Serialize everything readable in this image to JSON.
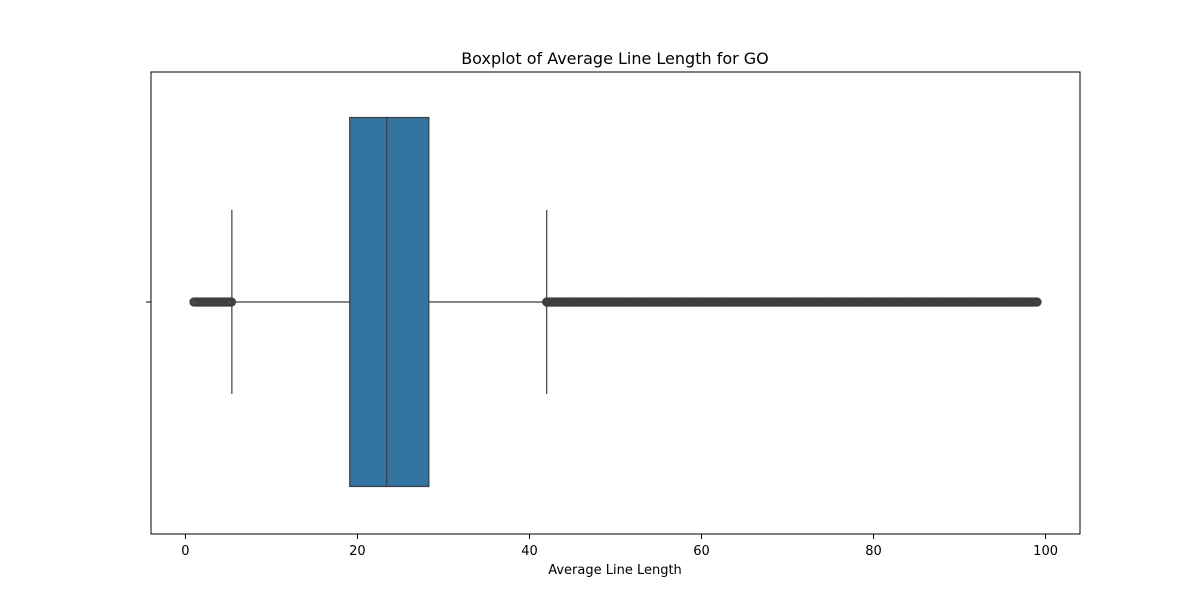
{
  "chart_data": {
    "type": "boxplot",
    "title": "Boxplot of Average Line Length for GO",
    "xlabel": "Average Line Length",
    "ylabel": "",
    "xlim": [
      -4,
      104
    ],
    "x_ticks": [
      0,
      20,
      40,
      60,
      80,
      100
    ],
    "x_tick_labels": [
      "0",
      "20",
      "40",
      "60",
      "80",
      "100"
    ],
    "grid": false,
    "legend": "none",
    "box": {
      "whisker_low": 5.4,
      "q1": 19.1,
      "median": 23.4,
      "q3": 28.3,
      "whisker_high": 42.0
    },
    "outliers_low_range": [
      1.0,
      5.4
    ],
    "outliers_high_range": [
      42.0,
      99.0
    ],
    "colors": {
      "box_fill": "#3274a1",
      "line": "#3f3f3f",
      "outlier": "#3f3f3f",
      "axes": "#000000"
    }
  }
}
